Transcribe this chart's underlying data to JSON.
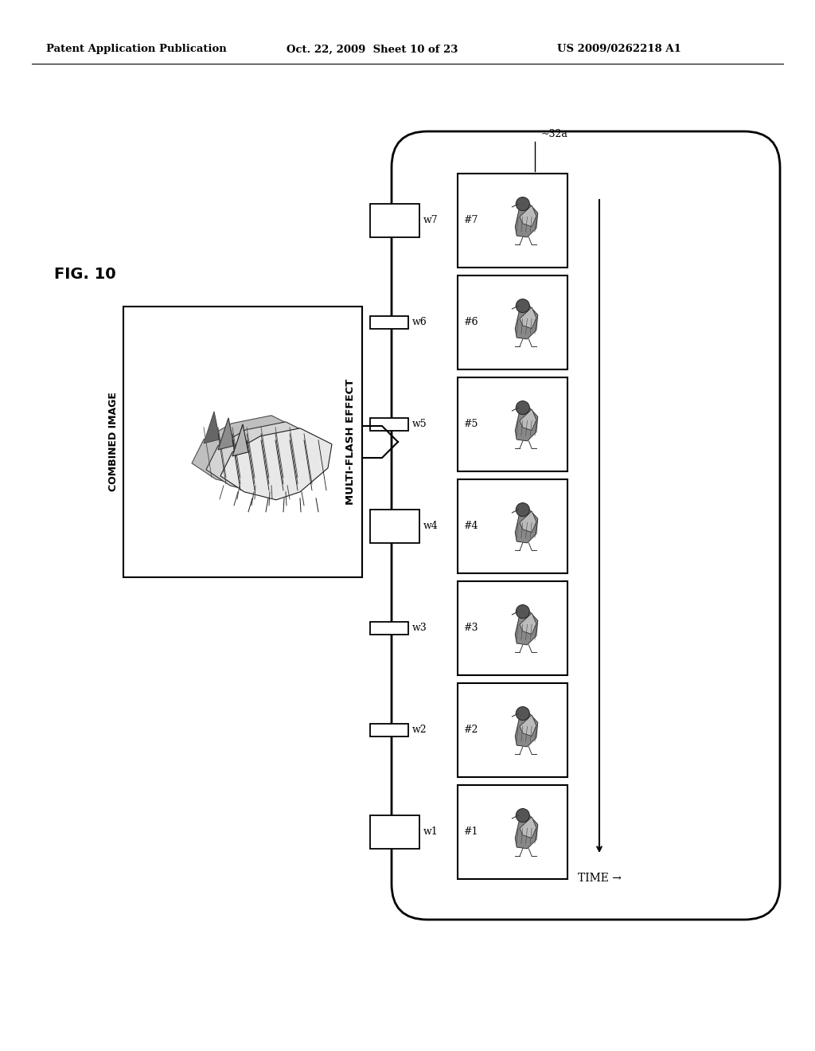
{
  "title_left": "Patent Application Publication",
  "title_center": "Oct. 22, 2009  Sheet 10 of 23",
  "title_right": "US 2009/0262218 A1",
  "fig_label": "FIG. 10",
  "combined_image_label": "COMBINED IMAGE",
  "multi_flash_label": "MULTI-FLASH EFFECT",
  "time_label": "TIME →",
  "ref_label": "~32a",
  "frame_labels": [
    "#1",
    "#2",
    "#3",
    "#4",
    "#5",
    "#6",
    "#7"
  ],
  "weight_labels": [
    "w1",
    "w2",
    "w3",
    "w4",
    "w5",
    "w6",
    "w7"
  ],
  "large_weights": [
    0,
    3,
    6
  ],
  "bg_color": "#ffffff",
  "text_color": "#000000"
}
